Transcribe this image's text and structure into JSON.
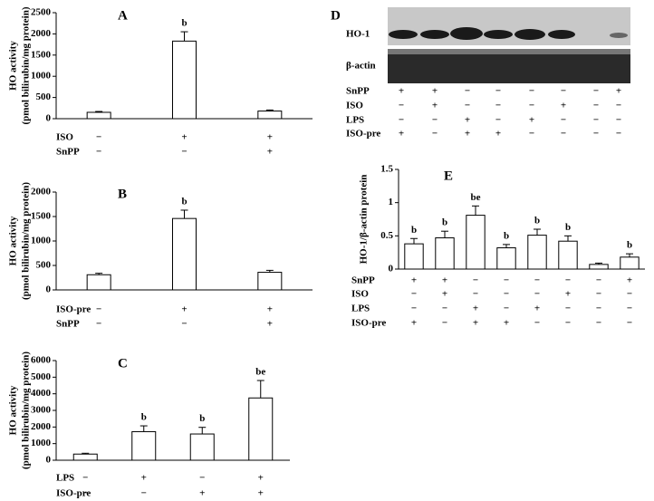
{
  "chart_data": [
    {
      "type": "bar",
      "title": "A",
      "y_label": [
        "HO activity",
        "(pmol bilirubin/mg protein)"
      ],
      "ylim": [
        0,
        2500
      ],
      "yticks": [
        0,
        500,
        1000,
        1500,
        2000,
        2500
      ],
      "values": [
        150,
        1830,
        180
      ],
      "errors": [
        20,
        220,
        25
      ],
      "annotations": [
        null,
        "b",
        null
      ],
      "color": "#ffffff",
      "conditions": [
        {
          "name": "ISO",
          "values": [
            "−",
            "+",
            "+"
          ]
        },
        {
          "name": "SnPP",
          "values": [
            "−",
            "−",
            "+"
          ]
        }
      ]
    },
    {
      "type": "bar",
      "title": "B",
      "y_label": [
        "HO activity",
        "(pmol bilirubin/mg protein)"
      ],
      "ylim": [
        0,
        2000
      ],
      "yticks": [
        0,
        500,
        1000,
        1500,
        2000
      ],
      "values": [
        310,
        1460,
        360
      ],
      "errors": [
        30,
        170,
        40
      ],
      "annotations": [
        null,
        "b",
        null
      ],
      "color": "#ffffff",
      "conditions": [
        {
          "name": "ISO-pre",
          "values": [
            "−",
            "+",
            "+"
          ]
        },
        {
          "name": "SnPP",
          "values": [
            "−",
            "−",
            "+"
          ]
        }
      ]
    },
    {
      "type": "bar",
      "title": "C",
      "y_label": [
        "HO activity",
        "(pmol bilirubin/mg protein)"
      ],
      "ylim": [
        0,
        6000
      ],
      "yticks": [
        0,
        1000,
        2000,
        3000,
        4000,
        5000,
        6000
      ],
      "values": [
        370,
        1720,
        1580,
        3750
      ],
      "errors": [
        50,
        350,
        400,
        1050
      ],
      "annotations": [
        null,
        "b",
        "b",
        "be"
      ],
      "color": "#ffffff",
      "conditions": [
        {
          "name": "LPS",
          "values": [
            "−",
            "+",
            "−",
            "+"
          ]
        },
        {
          "name": "ISO-pre",
          "values": [
            "−",
            "−",
            "+",
            "+"
          ]
        }
      ]
    },
    {
      "type": "bar",
      "title": "E",
      "y_label": [
        "HO-1/β-actin protein"
      ],
      "ylim": [
        0,
        1.5
      ],
      "yticks": [
        0,
        0.5,
        1,
        1.5
      ],
      "values": [
        0.38,
        0.47,
        0.81,
        0.32,
        0.51,
        0.42,
        0.07,
        0.18
      ],
      "errors": [
        0.08,
        0.1,
        0.14,
        0.05,
        0.09,
        0.08,
        0.02,
        0.05
      ],
      "annotations": [
        "b",
        "b",
        "be",
        "b",
        "b",
        "b",
        null,
        "b"
      ],
      "color": "#ffffff",
      "conditions": [
        {
          "name": "SnPP",
          "values": [
            "+",
            "+",
            "−",
            "−",
            "−",
            "−",
            "−",
            "+"
          ]
        },
        {
          "name": "ISO",
          "values": [
            "−",
            "+",
            "−",
            "−",
            "−",
            "+",
            "−",
            "−"
          ]
        },
        {
          "name": "LPS",
          "values": [
            "−",
            "−",
            "+",
            "−",
            "+",
            "−",
            "−",
            "−"
          ]
        },
        {
          "name": "ISO-pre",
          "values": [
            "+",
            "−",
            "+",
            "+",
            "−",
            "−",
            "−",
            "−"
          ]
        }
      ]
    }
  ],
  "blot": {
    "title": "D",
    "lanes": [
      "HO-1",
      "β-actin"
    ],
    "conditions": [
      {
        "name": "SnPP",
        "values": [
          "+",
          "+",
          "−",
          "−",
          "−",
          "−",
          "−",
          "+"
        ]
      },
      {
        "name": "ISO",
        "values": [
          "−",
          "+",
          "−",
          "−",
          "−",
          "+",
          "−",
          "−"
        ]
      },
      {
        "name": "LPS",
        "values": [
          "−",
          "−",
          "+",
          "−",
          "+",
          "−",
          "−",
          "−"
        ]
      },
      {
        "name": "ISO-pre",
        "values": [
          "+",
          "−",
          "+",
          "+",
          "−",
          "−",
          "−",
          "−"
        ]
      }
    ]
  }
}
